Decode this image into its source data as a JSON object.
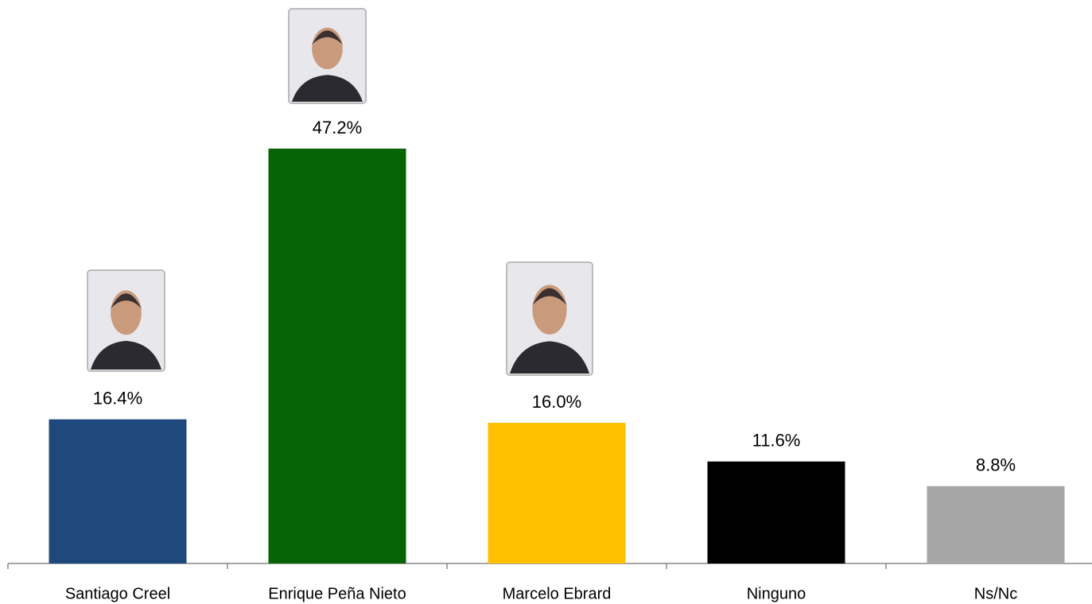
{
  "chart_data": {
    "type": "bar",
    "categories": [
      "Santiago Creel",
      "Enrique Peña Nieto",
      "Marcelo Ebrard",
      "Ninguno",
      "Ns/Nc"
    ],
    "values": [
      16.4,
      47.2,
      16.0,
      11.6,
      8.8
    ],
    "value_labels": [
      "16.4%",
      "47.2%",
      "16.0%",
      "11.6%",
      "8.8%"
    ],
    "colors": [
      "#1f497d",
      "#066406",
      "#ffc000",
      "#000000",
      "#a6a6a6"
    ]
  }
}
